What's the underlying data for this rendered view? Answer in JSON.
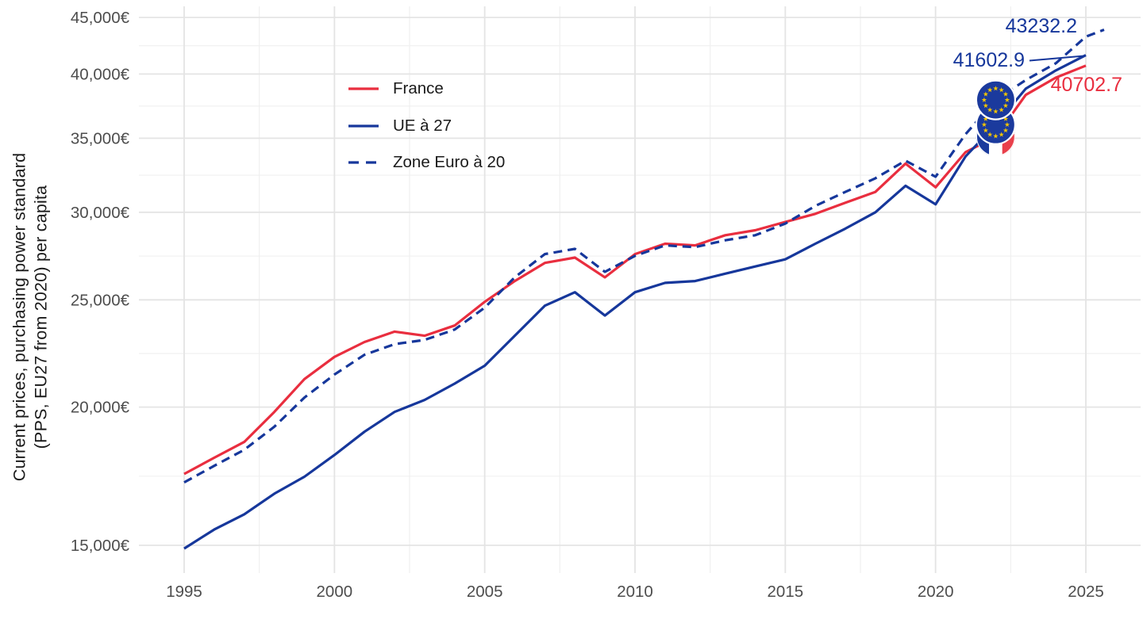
{
  "page": {
    "background": "#FFFFFF"
  },
  "colors": {
    "france_red": "#E92E3F",
    "navy_blue": "#16379B",
    "eu_flag_blue": "#1B3A9D",
    "eu_star_gold": "#F4C500",
    "fr_flag_blue": "#1B3A9D",
    "fr_flag_white": "#FFFFFF",
    "fr_flag_red": "#E9404B",
    "axis_text": "#4D4D4D",
    "title_text": "#1A1A1A",
    "grid_major": "#E4E4E4",
    "grid_minor": "#F0F0F0"
  },
  "y_axis": {
    "title_line1": "Current prices, purchasing power standard",
    "title_line2": "(PPS, EU27 from 2020) per capita",
    "tick_values": [
      45000,
      40000,
      35000,
      30000,
      25000,
      20000,
      15000
    ],
    "tick_labels": [
      "45,000€",
      "40,000€",
      "35,000€",
      "30,000€",
      "25,000€",
      "20,000€",
      "15,000€"
    ]
  },
  "x_axis": {
    "tick_values": [
      1995,
      2000,
      2005,
      2010,
      2015,
      2020,
      2025
    ],
    "tick_labels": [
      "1995",
      "2000",
      "2005",
      "2010",
      "2015",
      "2020",
      "2025"
    ]
  },
  "legend": {
    "items": [
      {
        "label": "France",
        "line_style": "solid",
        "color_key": "red"
      },
      {
        "label": "UE à 27",
        "line_style": "solid",
        "color_key": "navy"
      },
      {
        "label": "Zone Euro à 20",
        "line_style": "dashed",
        "color_key": "navy"
      }
    ]
  },
  "annotations": {
    "end_labels": [
      {
        "text": "43232.2",
        "series": "Zone Euro à 20",
        "color_key": "navy"
      },
      {
        "text": "41602.9",
        "series": "UE à 27",
        "color_key": "navy"
      },
      {
        "text": "40702.7",
        "series": "France",
        "color_key": "red"
      }
    ],
    "flag_markers": [
      {
        "icon": "france-flag-icon",
        "year": 2022,
        "value": 35100
      },
      {
        "icon": "eu-flag-icon",
        "year": 2022,
        "value": 36000
      },
      {
        "icon": "eu-flag-icon",
        "year": 2022,
        "value": 37900
      }
    ]
  },
  "chart_data": {
    "type": "line",
    "title": "",
    "xlabel": "",
    "ylabel": "Current prices, purchasing power standard (PPS, EU27 from 2020) per capita",
    "y_scale": "log10",
    "grid": true,
    "legend_position": "top-left-inset",
    "xlim": [
      1993.5,
      2026.8
    ],
    "ylim": [
      14400,
      46200
    ],
    "x": [
      1995,
      1996,
      1997,
      1998,
      1999,
      2000,
      2001,
      2002,
      2003,
      2004,
      2005,
      2006,
      2007,
      2008,
      2009,
      2010,
      2011,
      2012,
      2013,
      2014,
      2015,
      2016,
      2017,
      2018,
      2019,
      2020,
      2021,
      2022,
      2023,
      2024,
      2025
    ],
    "series": [
      {
        "name": "France",
        "color_key": "red",
        "linetype": "solid",
        "end_label": "40702.7",
        "values": [
          17400,
          18000,
          18600,
          19800,
          21200,
          22200,
          22900,
          23400,
          23200,
          23700,
          24900,
          26000,
          27000,
          27300,
          26200,
          27500,
          28100,
          28000,
          28600,
          28900,
          29400,
          29900,
          30600,
          31300,
          33200,
          31600,
          34000,
          35100,
          38300,
          39700,
          40702.7
        ]
      },
      {
        "name": "UE à 27",
        "color_key": "navy",
        "linetype": "solid",
        "end_label": "41602.9",
        "values": [
          14900,
          15500,
          16000,
          16700,
          17300,
          18100,
          19000,
          19800,
          20300,
          21000,
          21800,
          23200,
          24700,
          25400,
          24200,
          25400,
          25900,
          26000,
          26400,
          26800,
          27200,
          28100,
          29000,
          30000,
          31700,
          30500,
          33700,
          36000,
          38800,
          40300,
          41602.9
        ]
      },
      {
        "name": "Zone Euro à 20",
        "color_key": "navy",
        "linetype": "dashed",
        "end_label": "43232.2",
        "values": [
          17100,
          17700,
          18300,
          19200,
          20400,
          21400,
          22300,
          22800,
          23000,
          23500,
          24600,
          26200,
          27500,
          27800,
          26500,
          27400,
          28000,
          27900,
          28300,
          28600,
          29300,
          30400,
          31300,
          32200,
          33400,
          32300,
          35300,
          37900,
          39500,
          40900,
          43232.2
        ]
      }
    ]
  }
}
